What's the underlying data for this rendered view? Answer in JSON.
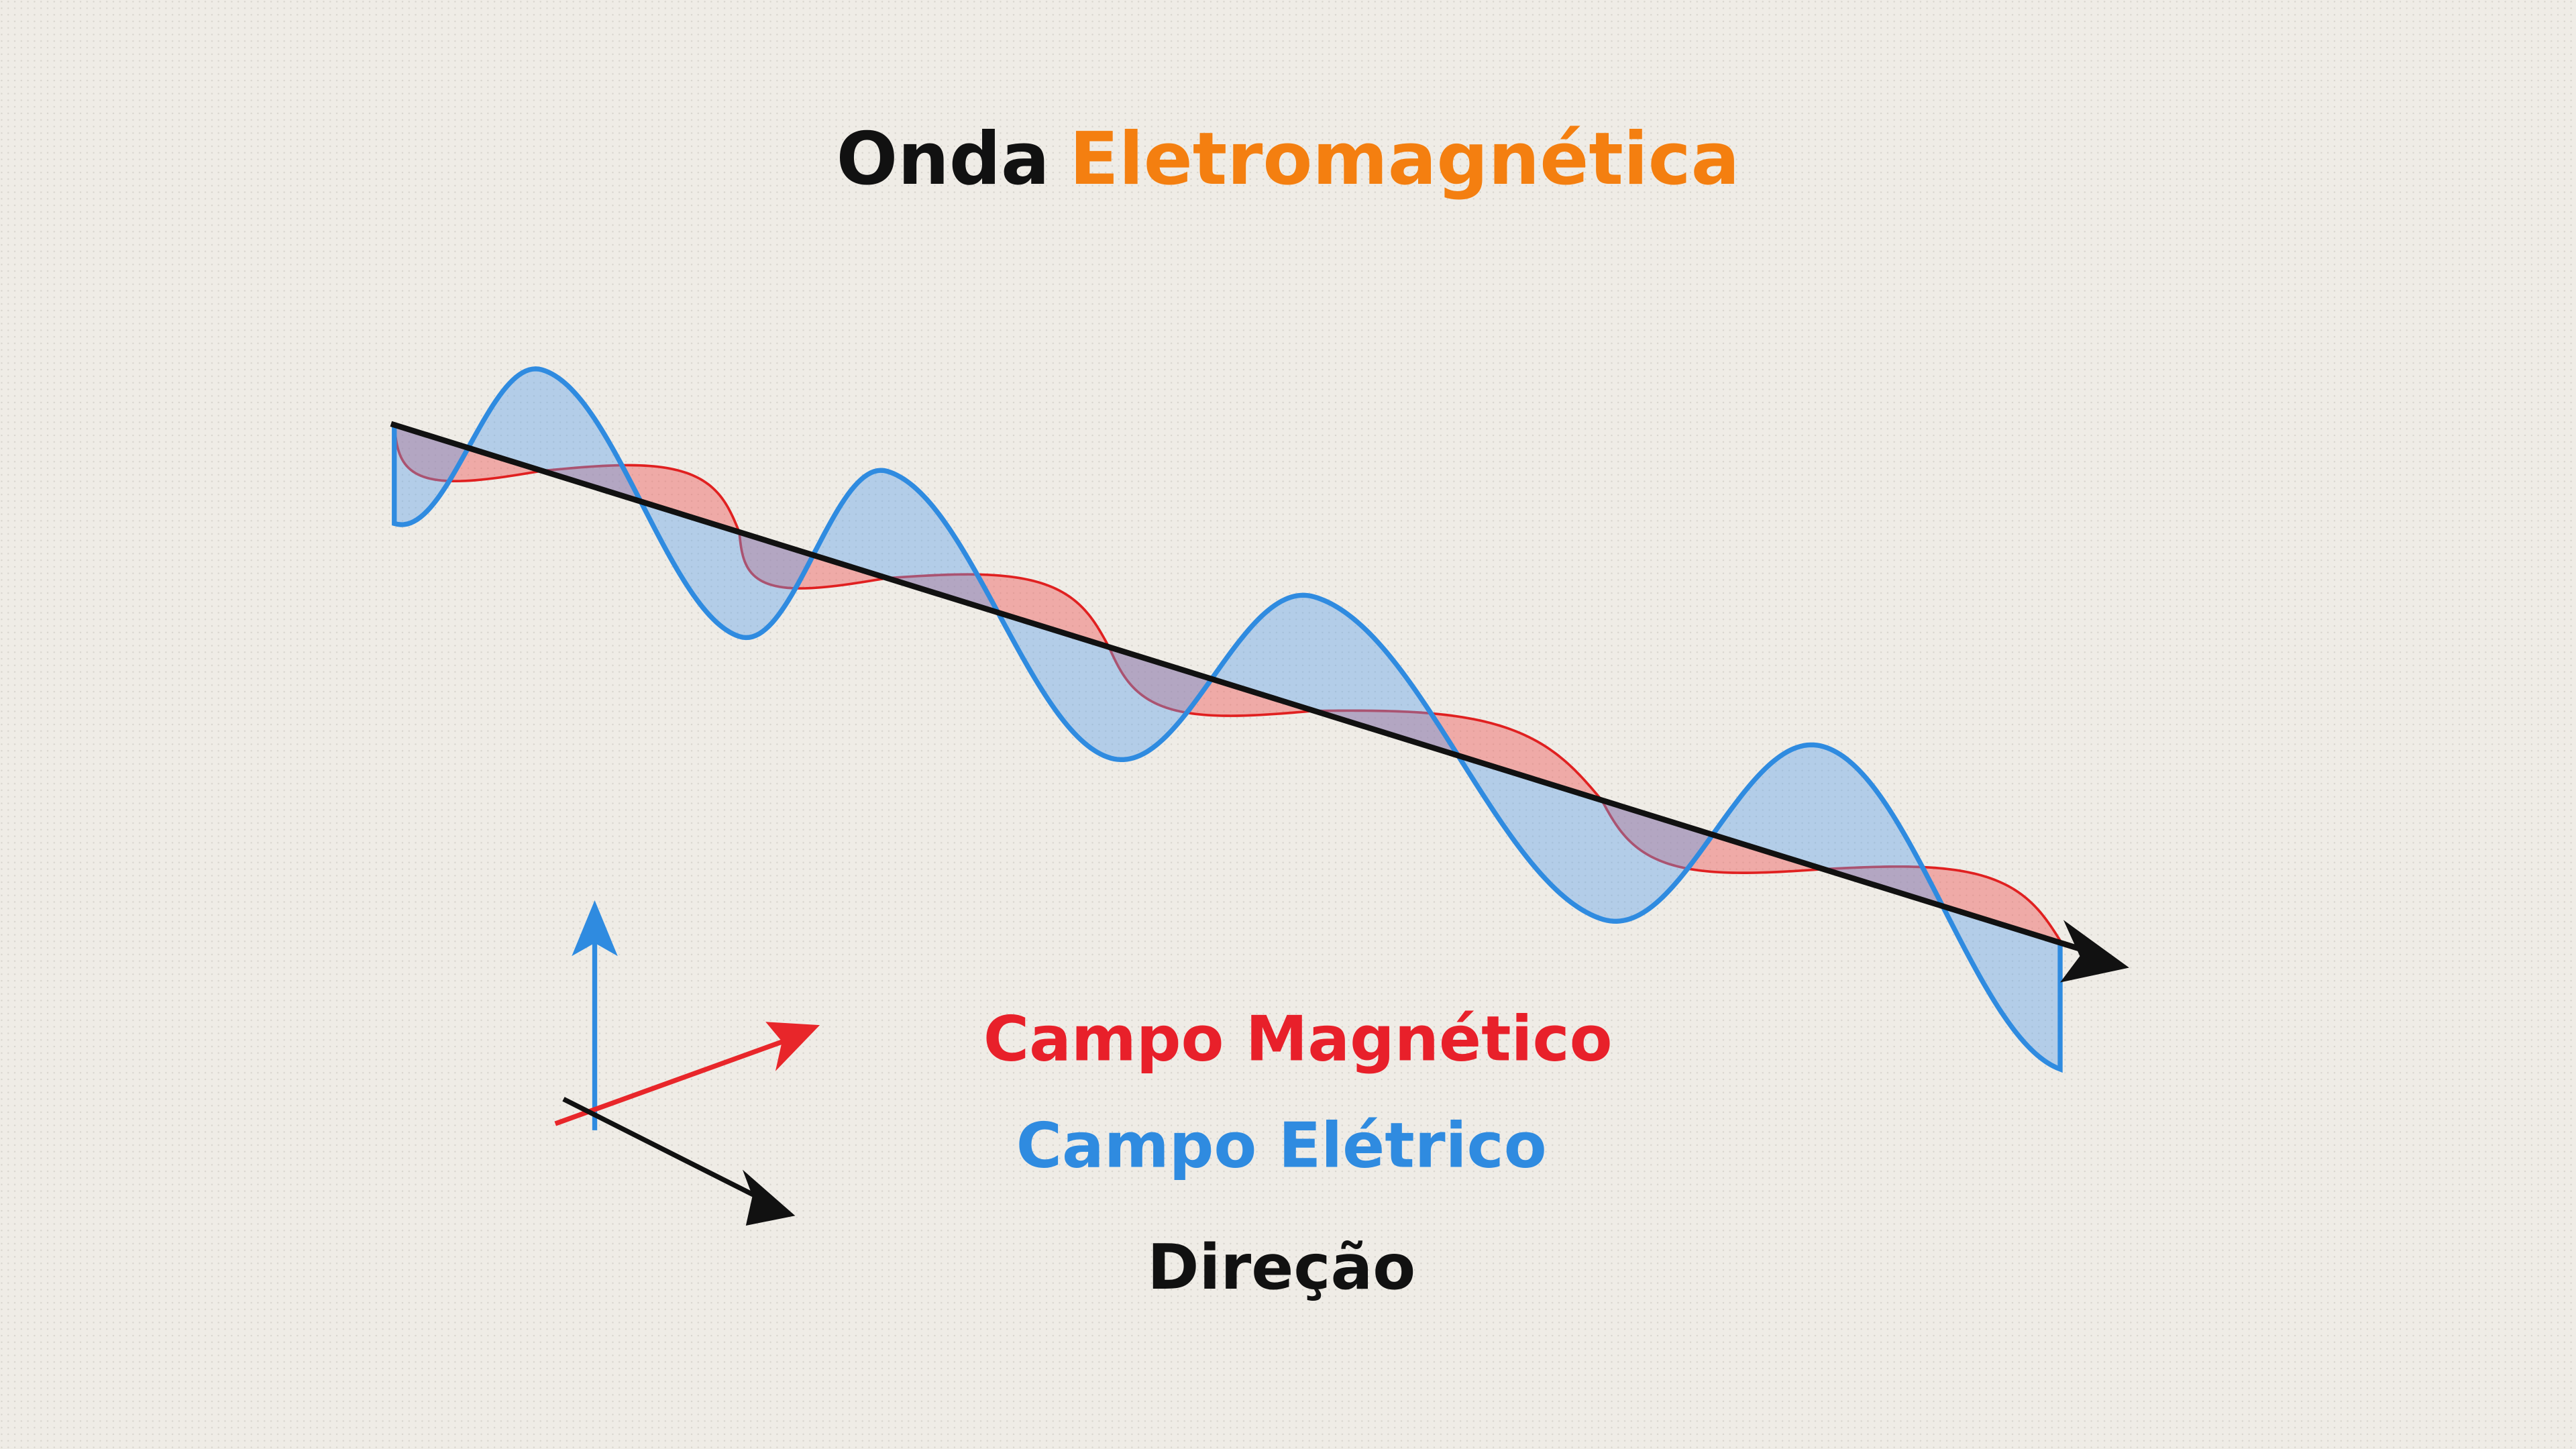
{
  "title": {
    "part1": "Onda",
    "part2": "Eletromagnética"
  },
  "legend": {
    "magnetic": "Campo Magnético",
    "electric": "Campo Elétrico",
    "direction": "Direção"
  }
}
